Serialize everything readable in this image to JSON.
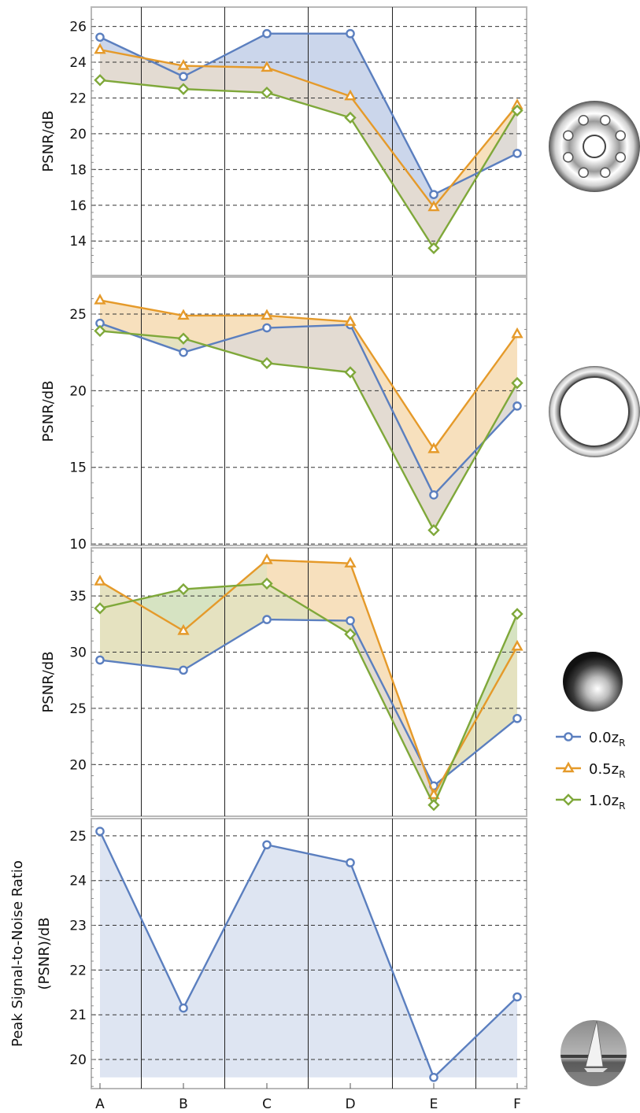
{
  "colors": {
    "s0": "#5b7fbf",
    "s1": "#e59a2a",
    "s2": "#7fa83a"
  },
  "legend": [
    {
      "label": "0.0z",
      "sub": "R",
      "marker": "circle"
    },
    {
      "label": "0.5z",
      "sub": "R",
      "marker": "triangle"
    },
    {
      "label": "1.0z",
      "sub": "R",
      "marker": "diamond"
    }
  ],
  "chart_data": [
    {
      "type": "line",
      "x": [
        "A",
        "B",
        "C",
        "D",
        "E",
        "F"
      ],
      "ylabel": "PSNR/dB",
      "ylim": [
        12.6,
        26.6
      ],
      "yticks": [
        14,
        16,
        18,
        20,
        22,
        24,
        26
      ],
      "grid": true,
      "image": "ring-with-holes",
      "series": [
        {
          "name": "0.0zR",
          "values": [
            25.4,
            23.2,
            25.6,
            25.6,
            16.6,
            18.9
          ]
        },
        {
          "name": "0.5zR",
          "values": [
            24.7,
            23.8,
            23.7,
            22.1,
            15.9,
            21.6
          ]
        },
        {
          "name": "1.0zR",
          "values": [
            23.0,
            22.5,
            22.3,
            20.9,
            13.6,
            21.3
          ]
        }
      ]
    },
    {
      "type": "line",
      "x": [
        "A",
        "B",
        "C",
        "D",
        "E",
        "F"
      ],
      "ylabel": "PSNR/dB",
      "ylim": [
        9.8,
        26.9
      ],
      "yticks": [
        10,
        15,
        20,
        25
      ],
      "grid": true,
      "image": "ring",
      "series": [
        {
          "name": "0.0zR",
          "values": [
            24.4,
            22.5,
            24.1,
            24.3,
            13.2,
            19.0
          ]
        },
        {
          "name": "0.5zR",
          "values": [
            25.9,
            24.9,
            24.9,
            24.5,
            16.2,
            23.7
          ]
        },
        {
          "name": "1.0zR",
          "values": [
            23.9,
            23.4,
            21.8,
            21.2,
            10.9,
            20.5
          ]
        }
      ]
    },
    {
      "type": "line",
      "x": [
        "A",
        "B",
        "C",
        "D",
        "E",
        "F"
      ],
      "ylabel": "PSNR/dB",
      "ylim": [
        15.4,
        39.0
      ],
      "yticks": [
        20,
        25,
        30,
        35
      ],
      "grid": true,
      "image": "gaussian-disk",
      "series": [
        {
          "name": "0.0zR",
          "values": [
            29.3,
            28.4,
            32.9,
            32.8,
            18.1,
            24.1
          ]
        },
        {
          "name": "0.5zR",
          "values": [
            36.3,
            31.9,
            38.2,
            37.9,
            17.3,
            30.5
          ]
        },
        {
          "name": "1.0zR",
          "values": [
            33.9,
            35.6,
            36.1,
            31.6,
            16.4,
            33.4
          ]
        }
      ]
    },
    {
      "type": "line",
      "x": [
        "A",
        "B",
        "C",
        "D",
        "E",
        "F"
      ],
      "ylabel_lines": [
        "Peak Signal-to-Noise Ratio",
        "(PSNR)/dB"
      ],
      "ylim": [
        19.35,
        25.35
      ],
      "yticks": [
        20,
        21,
        22,
        23,
        24,
        25
      ],
      "grid": true,
      "image": "sailboat-photo",
      "series": [
        {
          "name": "0.0zR",
          "values": [
            25.1,
            21.15,
            24.8,
            24.4,
            19.6,
            21.4
          ]
        }
      ]
    }
  ]
}
